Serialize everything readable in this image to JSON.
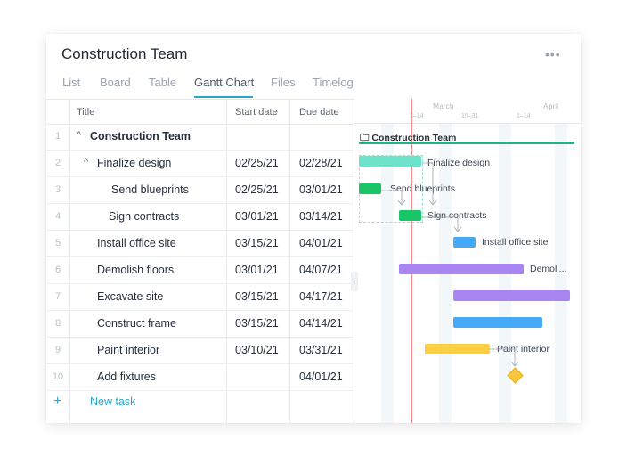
{
  "project": {
    "title": "Construction Team",
    "more": "•••"
  },
  "tabs": [
    {
      "label": "List"
    },
    {
      "label": "Board"
    },
    {
      "label": "Table"
    },
    {
      "label": "Gantt Chart"
    },
    {
      "label": "Files"
    },
    {
      "label": "Timelog"
    }
  ],
  "columns": {
    "title": "Title",
    "start": "Start date",
    "due": "Due date"
  },
  "tasks": [
    {
      "num": "1",
      "title": "Construction Team",
      "start": "",
      "due": ""
    },
    {
      "num": "2",
      "title": "Finalize design",
      "start": "02/25/21",
      "due": "02/28/21"
    },
    {
      "num": "3",
      "title": "Send blueprints",
      "start": "02/25/21",
      "due": "03/01/21"
    },
    {
      "num": "4",
      "title": "Sign contracts",
      "start": "03/01/21",
      "due": "03/14/21"
    },
    {
      "num": "5",
      "title": "Install office site",
      "start": "03/15/21",
      "due": "04/01/21"
    },
    {
      "num": "6",
      "title": "Demolish floors",
      "start": "03/01/21",
      "due": "04/07/21"
    },
    {
      "num": "7",
      "title": "Excavate site",
      "start": "03/15/21",
      "due": "04/17/21"
    },
    {
      "num": "8",
      "title": "Construct frame",
      "start": "03/15/21",
      "due": "04/14/21"
    },
    {
      "num": "9",
      "title": "Paint interior",
      "start": "03/10/21",
      "due": "03/31/21"
    },
    {
      "num": "10",
      "title": "Add fixtures",
      "start": "",
      "due": "04/01/21"
    }
  ],
  "new_task": {
    "plus": "+",
    "label": "New task"
  },
  "gantt": {
    "months": [
      {
        "label": "March"
      },
      {
        "label": "April"
      }
    ],
    "weeks": [
      "1–14",
      "15–31",
      "1–14"
    ],
    "project_label": "Construction Team",
    "bar_labels": {
      "finalize": "Finalize design",
      "blueprints": "Send blueprints",
      "contracts": "Sign contracts",
      "office": "Install office site",
      "demolish": "Demoli...",
      "paint": "Paint interior"
    },
    "colors": {
      "finalize": "#6de3c9",
      "green": "#18c567",
      "blue": "#45a9f5",
      "purple": "#a985f2",
      "yellow": "#fbcf45",
      "today": "#f08a8a",
      "accent": "#2aa8cc"
    }
  }
}
